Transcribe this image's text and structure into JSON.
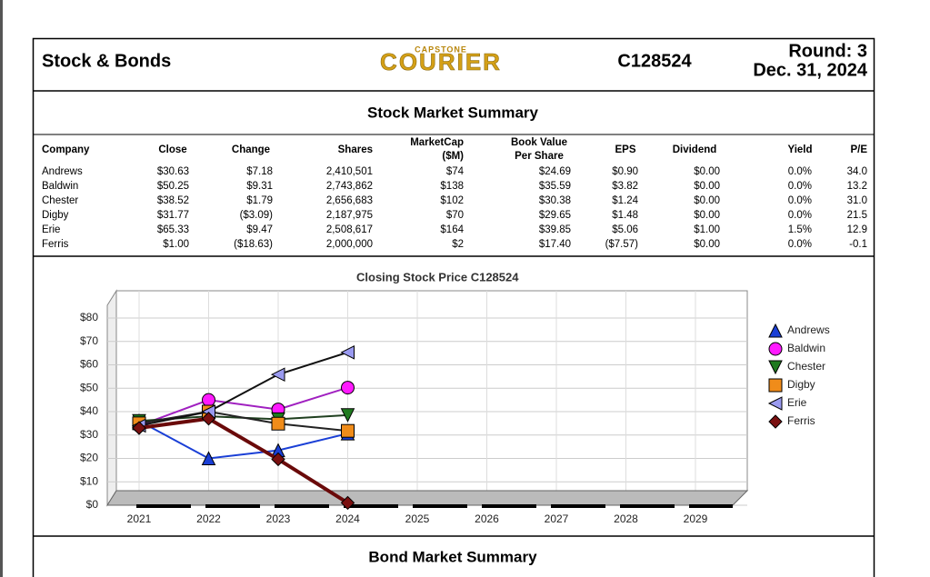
{
  "header": {
    "title": "Stock & Bonds",
    "logo_top": "CAPSTONE",
    "logo": "COURIER",
    "code": "C128524",
    "round": "Round: 3",
    "date": "Dec. 31, 2024"
  },
  "section_title": "Stock Market Summary",
  "table": {
    "columns": [
      [
        "Company"
      ],
      [
        "Close"
      ],
      [
        "Change"
      ],
      [
        "Shares"
      ],
      [
        "MarketCap",
        "($M)"
      ],
      [
        "Book Value",
        "Per Share"
      ],
      [
        "EPS"
      ],
      [
        "Dividend"
      ],
      [
        "Yield"
      ],
      [
        "P/E"
      ]
    ],
    "rows": [
      [
        "Andrews",
        "$30.63",
        "$7.18",
        "2,410,501",
        "$74",
        "$24.69",
        "$0.90",
        "$0.00",
        "0.0%",
        "34.0"
      ],
      [
        "Baldwin",
        "$50.25",
        "$9.31",
        "2,743,862",
        "$138",
        "$35.59",
        "$3.82",
        "$0.00",
        "0.0%",
        "13.2"
      ],
      [
        "Chester",
        "$38.52",
        "$1.79",
        "2,656,683",
        "$102",
        "$30.38",
        "$1.24",
        "$0.00",
        "0.0%",
        "31.0"
      ],
      [
        "Digby",
        "$31.77",
        "($3.09)",
        "2,187,975",
        "$70",
        "$29.65",
        "$1.48",
        "$0.00",
        "0.0%",
        "21.5"
      ],
      [
        "Erie",
        "$65.33",
        "$9.47",
        "2,508,617",
        "$164",
        "$39.85",
        "$5.06",
        "$1.00",
        "1.5%",
        "12.9"
      ],
      [
        "Ferris",
        "$1.00",
        "($18.63)",
        "2,000,000",
        "$2",
        "$17.40",
        "($7.57)",
        "$0.00",
        "0.0%",
        "-0.1"
      ]
    ]
  },
  "chart_data": {
    "type": "line",
    "title": "Closing Stock Price C128524",
    "categories": [
      "2021",
      "2022",
      "2023",
      "2024",
      "2025",
      "2026",
      "2027",
      "2028",
      "2029"
    ],
    "ylim": [
      0,
      80
    ],
    "yticks": [
      {
        "value": 0,
        "label": "$0"
      },
      {
        "value": 10,
        "label": "$10"
      },
      {
        "value": 20,
        "label": "$20"
      },
      {
        "value": 30,
        "label": "$30"
      },
      {
        "value": 40,
        "label": "$40"
      },
      {
        "value": 50,
        "label": "$50"
      },
      {
        "value": 60,
        "label": "$60"
      },
      {
        "value": 70,
        "label": "$70"
      },
      {
        "value": 80,
        "label": "$80"
      }
    ],
    "grid": true,
    "legend": "right",
    "series": [
      {
        "name": "Andrews",
        "color": "#1a3fd6",
        "line_color": "#1a3fd6",
        "marker": "triangle-up",
        "values": [
          36,
          20,
          23.45,
          30.63,
          null,
          null,
          null,
          null,
          null
        ]
      },
      {
        "name": "Baldwin",
        "color": "#ff1aff",
        "line_color": "#a020c0",
        "marker": "circle",
        "values": [
          34,
          45,
          40.94,
          50.25,
          null,
          null,
          null,
          null,
          null
        ]
      },
      {
        "name": "Chester",
        "color": "#1f7a1f",
        "line_color": "#1f3f1f",
        "marker": "triangle-down",
        "values": [
          36,
          38,
          36.73,
          38.52,
          null,
          null,
          null,
          null,
          null
        ]
      },
      {
        "name": "Digby",
        "color": "#f08c1a",
        "line_color": "#222222",
        "marker": "square",
        "values": [
          35,
          40,
          34.86,
          31.77,
          null,
          null,
          null,
          null,
          null
        ]
      },
      {
        "name": "Erie",
        "color": "#9a9af0",
        "line_color": "#111111",
        "marker": "triangle-left",
        "values": [
          34,
          40,
          55.86,
          65.33,
          null,
          null,
          null,
          null,
          null
        ]
      },
      {
        "name": "Ferris",
        "color": "#7a1010",
        "line_color": "#6a0a0a",
        "marker": "diamond",
        "values": [
          33,
          37,
          19.63,
          1.0,
          null,
          null,
          null,
          null,
          null
        ]
      }
    ]
  },
  "footer_title": "Bond Market Summary"
}
